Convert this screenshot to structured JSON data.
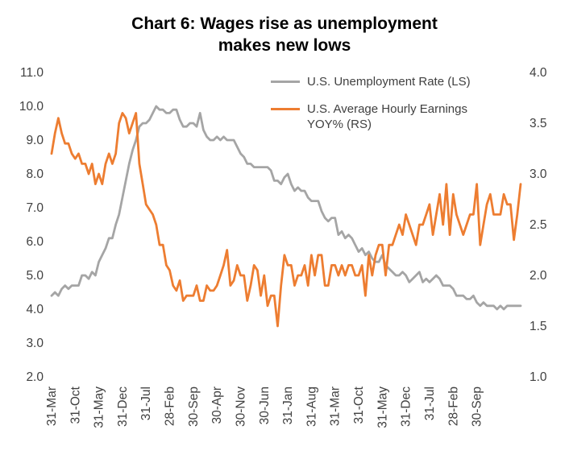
{
  "title": {
    "line1": "Chart 6: Wages rise as unemployment",
    "line2": "makes new lows"
  },
  "legend": {
    "items": [
      {
        "label": "U.S. Unemployment Rate (LS)",
        "color": "#A5A5A5"
      },
      {
        "label": "U.S. Average Hourly Earnings YOY% (RS)",
        "line1": "U.S. Average Hourly Earnings",
        "line2": "YOY% (RS)",
        "color": "#ED7D31"
      }
    ]
  },
  "chart_data": {
    "type": "line",
    "title": "Chart 6: Wages rise as unemployment makes new lows",
    "grid": false,
    "legend_position": "inside-top-right",
    "x_frequency": "monthly",
    "x_tick_interval_months": 7,
    "x_tick_labels": [
      "31-Mar",
      "31-Oct",
      "31-May",
      "31-Dec",
      "31-Jul",
      "28-Feb",
      "30-Sep",
      "30-Apr",
      "30-Nov",
      "30-Jun",
      "31-Jan",
      "31-Aug",
      "31-Mar",
      "31-Oct",
      "31-May",
      "31-Dec",
      "31-Jul",
      "28-Feb",
      "30-Sep"
    ],
    "left_axis": {
      "min": 2.0,
      "max": 11.0,
      "step": 1.0,
      "ticks": [
        "11.0",
        "10.0",
        "9.0",
        "8.0",
        "7.0",
        "6.0",
        "5.0",
        "4.0",
        "3.0",
        "2.0"
      ]
    },
    "right_axis": {
      "min": 1.0,
      "max": 4.0,
      "step": 0.5,
      "ticks": [
        "4.0",
        "3.5",
        "3.0",
        "2.5",
        "2.0",
        "1.5",
        "1.0"
      ]
    },
    "series": [
      {
        "id": "unemployment-rate",
        "name": "U.S. Unemployment Rate (LS)",
        "axis": "left",
        "color": "#A5A5A5",
        "values": [
          4.4,
          4.5,
          4.4,
          4.6,
          4.7,
          4.6,
          4.7,
          4.7,
          4.7,
          5.0,
          5.0,
          4.9,
          5.1,
          5.0,
          5.4,
          5.6,
          5.8,
          6.1,
          6.1,
          6.5,
          6.8,
          7.3,
          7.8,
          8.3,
          8.7,
          9.0,
          9.4,
          9.5,
          9.5,
          9.6,
          9.8,
          10.0,
          9.9,
          9.9,
          9.8,
          9.8,
          9.9,
          9.9,
          9.6,
          9.4,
          9.4,
          9.5,
          9.5,
          9.4,
          9.8,
          9.3,
          9.1,
          9.0,
          9.0,
          9.1,
          9.0,
          9.1,
          9.0,
          9.0,
          9.0,
          8.8,
          8.6,
          8.5,
          8.3,
          8.3,
          8.2,
          8.2,
          8.2,
          8.2,
          8.2,
          8.1,
          7.8,
          7.8,
          7.7,
          7.9,
          8.0,
          7.7,
          7.5,
          7.6,
          7.5,
          7.5,
          7.3,
          7.2,
          7.2,
          7.2,
          6.9,
          6.7,
          6.6,
          6.7,
          6.7,
          6.2,
          6.3,
          6.1,
          6.2,
          6.1,
          5.9,
          5.7,
          5.8,
          5.6,
          5.7,
          5.5,
          5.4,
          5.4,
          5.6,
          5.3,
          5.2,
          5.1,
          5.0,
          5.0,
          5.1,
          5.0,
          4.8,
          4.9,
          5.0,
          5.1,
          4.8,
          4.9,
          4.8,
          4.9,
          5.0,
          4.9,
          4.7,
          4.7,
          4.7,
          4.6,
          4.4,
          4.4,
          4.4,
          4.3,
          4.3,
          4.4,
          4.2,
          4.1,
          4.2,
          4.1,
          4.1,
          4.1,
          4.0,
          4.1,
          4.0,
          4.1,
          4.1,
          4.1,
          4.1,
          4.1
        ]
      },
      {
        "id": "avg-hourly-earnings",
        "name": "U.S. Average Hourly Earnings YOY% (RS)",
        "axis": "right",
        "color": "#ED7D31",
        "values": [
          3.2,
          3.4,
          3.55,
          3.4,
          3.3,
          3.3,
          3.2,
          3.15,
          3.2,
          3.1,
          3.1,
          3.0,
          3.1,
          2.9,
          3.0,
          2.9,
          3.1,
          3.2,
          3.1,
          3.2,
          3.5,
          3.6,
          3.55,
          3.4,
          3.5,
          3.6,
          3.1,
          2.9,
          2.7,
          2.65,
          2.6,
          2.5,
          2.3,
          2.3,
          2.1,
          2.05,
          1.9,
          1.85,
          1.95,
          1.75,
          1.8,
          1.8,
          1.8,
          1.9,
          1.75,
          1.75,
          1.9,
          1.85,
          1.85,
          1.9,
          2.0,
          2.1,
          2.25,
          1.9,
          1.95,
          2.1,
          2.0,
          2.0,
          1.75,
          1.9,
          2.1,
          2.05,
          1.8,
          2.0,
          1.7,
          1.8,
          1.8,
          1.5,
          1.9,
          2.2,
          2.1,
          2.1,
          1.9,
          2.0,
          2.0,
          2.1,
          1.9,
          2.2,
          2.0,
          2.2,
          2.2,
          1.9,
          1.9,
          2.1,
          2.1,
          2.0,
          2.1,
          2.0,
          2.1,
          2.1,
          2.0,
          2.0,
          2.1,
          1.8,
          2.2,
          2.0,
          2.2,
          2.3,
          2.3,
          2.0,
          2.3,
          2.3,
          2.4,
          2.5,
          2.4,
          2.6,
          2.5,
          2.4,
          2.3,
          2.5,
          2.5,
          2.6,
          2.7,
          2.4,
          2.6,
          2.8,
          2.5,
          2.9,
          2.4,
          2.8,
          2.6,
          2.5,
          2.4,
          2.5,
          2.6,
          2.6,
          2.9,
          2.3,
          2.5,
          2.7,
          2.8,
          2.6,
          2.6,
          2.6,
          2.8,
          2.7,
          2.7,
          2.35,
          2.6,
          2.9
        ]
      }
    ]
  }
}
